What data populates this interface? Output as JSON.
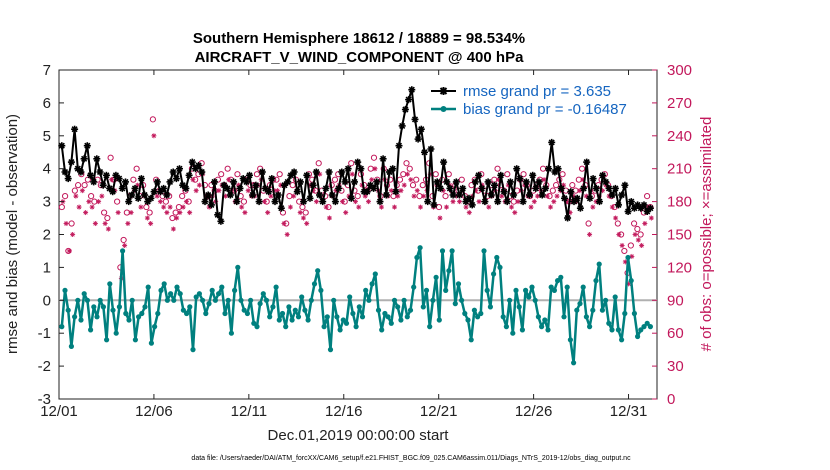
{
  "chart_data": {
    "type": "line",
    "title": "Southern Hemisphere 18612 / 18889 = 98.534%",
    "subtitle": "AIRCRAFT_V_WIND_COMPONENT @ 400 hPa",
    "xlabel": "Dec.01,2019 00:00:00 start",
    "ylabel": "rmse and bias (model - observation)",
    "y2label": "# of obs: o=possible; ×=assimilated",
    "xlim": [
      0,
      31.5
    ],
    "ylim": [
      -3,
      7
    ],
    "y2lim": [
      0,
      300
    ],
    "xticks": [
      0,
      5,
      10,
      15,
      20,
      25,
      30
    ],
    "xticklabels": [
      "12/01",
      "12/06",
      "12/11",
      "12/16",
      "12/21",
      "12/26",
      "12/31"
    ],
    "yticks": [
      -3,
      -2,
      -1,
      0,
      1,
      2,
      3,
      4,
      5,
      6,
      7
    ],
    "y2ticks": [
      0,
      30,
      60,
      90,
      120,
      150,
      180,
      210,
      240,
      270,
      300
    ],
    "legend_position": "top-right",
    "footnote": "data file: /Users/raeder/DAI/ATM_forcXX/CAM6_setup/f.e21.FHIST_BGC.f09_025.CAM6assim.011/Diags_NTrS_2019-12/obs_diag_output.nc",
    "colors": {
      "rmse": "#000000",
      "bias": "#00807f",
      "obs": "#c2185b",
      "legend_text": "#1565c0",
      "zero_line": "#b0b0b0"
    },
    "series": [
      {
        "name": "rmse grand pr = 3.635",
        "axis": "left",
        "marker": "asterisk",
        "values": [
          4.7,
          3.9,
          3.7,
          4.2,
          5.2,
          4.0,
          3.9,
          4.3,
          4.7,
          3.8,
          3.6,
          4.3,
          3.9,
          3.5,
          3.8,
          3.4,
          3.3,
          3.8,
          3.7,
          3.4,
          3.6,
          3.0,
          3.2,
          3.4,
          3.1,
          3.7,
          3.2,
          3.0,
          3.1,
          3.3,
          3.6,
          3.3,
          3.4,
          3.2,
          3.6,
          3.9,
          3.7,
          4.0,
          3.5,
          3.4,
          3.8,
          4.2,
          4.0,
          4.1,
          3.9,
          3.0,
          3.2,
          2.9,
          3.6,
          2.6,
          2.4,
          3.5,
          3.4,
          3.2,
          3.6,
          3.0,
          3.4,
          3.7,
          3.6,
          3.8,
          3.2,
          3.5,
          3.0,
          3.9,
          3.4,
          3.3,
          3.7,
          3.0,
          3.2,
          2.8,
          3.5,
          3.6,
          3.8,
          3.9,
          3.3,
          3.6,
          3.0,
          3.8,
          3.1,
          3.5,
          3.9,
          3.2,
          3.0,
          3.4,
          3.9,
          3.2,
          3.0,
          3.4,
          3.9,
          3.6,
          4.0,
          3.1,
          3.6,
          4.2,
          4.0,
          3.3,
          3.3,
          3.5,
          3.4,
          3.6,
          3.0,
          4.3,
          3.2,
          3.9,
          4.0,
          3.3,
          4.7,
          5.3,
          5.8,
          6.1,
          6.4,
          5.5,
          4.9,
          5.2,
          4.5,
          3.0,
          4.6,
          2.9,
          3.6,
          3.4,
          4.2,
          3.6,
          3.4,
          3.2,
          3.6,
          3.2,
          3.4,
          3.0,
          3.1,
          2.9,
          3.6,
          3.8,
          3.4,
          3.0,
          3.6,
          3.2,
          3.5,
          3.0,
          3.8,
          3.3,
          3.0,
          3.6,
          3.2,
          4.0,
          3.7,
          3.0,
          3.6,
          3.2,
          3.8,
          3.4,
          3.6,
          3.2,
          3.4,
          4.0,
          4.8,
          3.9,
          4.0,
          3.4,
          3.1,
          2.5,
          3.3,
          3.0,
          3.1,
          2.8,
          3.4,
          4.2,
          3.1,
          3.7,
          3.4,
          3.0,
          3.8,
          3.6,
          3.4,
          3.2,
          3.4,
          2.9,
          3.2,
          3.5,
          2.7,
          3.0,
          2.8,
          2.9,
          2.8,
          2.9,
          2.7,
          2.8
        ]
      },
      {
        "name": "bias grand pr = -0.16487",
        "axis": "left",
        "marker": "dot",
        "values": [
          -0.8,
          0.3,
          -0.3,
          -1.4,
          -0.5,
          0.0,
          -0.6,
          0.2,
          0.0,
          -0.9,
          -0.2,
          -0.5,
          0.0,
          -0.2,
          -1.2,
          0.5,
          -0.3,
          -1.0,
          -0.2,
          1.5,
          -0.4,
          -0.6,
          0.0,
          -1.2,
          -0.5,
          -0.4,
          -0.2,
          0.4,
          -1.3,
          -0.8,
          -0.4,
          0.3,
          0.5,
          0.0,
          0.2,
          0.0,
          0.4,
          0.2,
          -0.3,
          -0.4,
          -0.2,
          -1.5,
          0.1,
          0.2,
          0.0,
          -0.4,
          -0.1,
          0.3,
          0.0,
          0.2,
          0.4,
          -0.4,
          0.0,
          -1.0,
          0.3,
          1.0,
          0.0,
          -0.3,
          -0.4,
          0.0,
          -0.7,
          -0.8,
          -0.1,
          0.2,
          0.0,
          -0.5,
          -0.2,
          0.4,
          -0.6,
          -0.4,
          -0.8,
          -0.2,
          -0.6,
          -0.3,
          -0.5,
          0.1,
          -0.3,
          -0.6,
          0.0,
          0.5,
          0.9,
          0.3,
          -0.8,
          -0.5,
          -1.5,
          0.0,
          -0.5,
          -0.9,
          -0.6,
          -0.7,
          0.1,
          -0.4,
          -0.8,
          -0.2,
          -0.5,
          0.3,
          0.0,
          0.5,
          0.8,
          -0.3,
          -0.9,
          -0.4,
          -0.5,
          -0.7,
          0.0,
          -0.2,
          -0.6,
          0.0,
          -0.5,
          -0.3,
          0.4,
          1.3,
          1.6,
          -0.2,
          0.3,
          -0.8,
          0.0,
          0.7,
          -0.6,
          1.5,
          0.3,
          0.9,
          1.5,
          -0.1,
          0.5,
          0.0,
          -0.4,
          -0.6,
          -1.2,
          -0.3,
          -0.5,
          -0.4,
          1.5,
          0.3,
          -0.2,
          0.8,
          1.3,
          1.0,
          -0.5,
          -0.8,
          0.0,
          -1.0,
          0.3,
          -0.2,
          -0.9,
          0.3,
          0.1,
          0.4,
          0.0,
          -0.5,
          -0.8,
          -0.6,
          -0.9,
          0.4,
          0.3,
          0.6,
          0.7,
          -0.5,
          0.4,
          -1.2,
          -1.9,
          -0.3,
          -0.1,
          0.4,
          -0.5,
          -0.8,
          -0.3,
          0.6,
          1.1,
          -0.3,
          0.0,
          -0.7,
          -0.9,
          0.1,
          -0.9,
          -1.2,
          -0.4,
          1.3,
          0.6,
          -0.4,
          -1.1,
          -0.9,
          -0.8,
          -0.7,
          -0.8
        ]
      }
    ],
    "obs_possible": [
      175,
      185,
      135,
      160,
      190,
      195,
      205,
      195,
      200,
      185,
      180,
      200,
      195,
      170,
      165,
      220,
      200,
      180,
      120,
      145,
      170,
      185,
      200,
      210,
      185,
      195,
      175,
      170,
      255,
      200,
      190,
      185,
      180,
      185,
      165,
      170,
      175,
      185,
      190,
      180,
      210,
      200,
      205,
      215,
      195,
      185,
      195,
      190,
      200,
      205,
      195,
      210,
      200,
      190,
      205,
      185,
      180,
      200,
      195,
      195,
      205,
      210,
      190,
      180,
      195,
      200,
      200,
      205,
      170,
      160,
      185,
      195,
      200,
      180,
      175,
      170,
      205,
      200,
      190,
      215,
      190,
      185,
      175,
      195,
      200,
      205,
      190,
      180,
      195,
      215,
      190,
      185,
      205,
      195,
      190,
      210,
      220,
      200,
      185,
      210,
      195,
      200,
      185,
      195,
      200,
      205,
      215,
      210,
      195,
      200,
      185,
      195,
      200,
      215,
      185,
      205,
      175,
      200,
      185,
      205,
      190,
      195,
      190,
      200,
      185,
      180,
      195,
      200,
      190,
      205,
      190,
      185,
      195,
      200,
      210,
      195,
      190,
      205,
      185,
      180,
      190,
      200,
      205,
      195,
      185,
      190,
      195,
      200,
      210,
      195,
      185,
      190,
      195,
      200,
      205,
      190,
      180,
      195,
      190,
      200,
      210,
      195,
      160,
      185,
      190,
      195,
      200,
      205,
      195,
      185,
      175,
      160,
      150,
      135,
      115,
      140,
      160,
      155,
      150,
      170,
      185,
      175
    ],
    "obs_assimilated": [
      180,
      160,
      135,
      150,
      185,
      175,
      190,
      170,
      180,
      175,
      160,
      180,
      185,
      160,
      155,
      200,
      190,
      170,
      110,
      140,
      160,
      170,
      190,
      195,
      175,
      185,
      165,
      160,
      240,
      185,
      180,
      175,
      170,
      175,
      155,
      165,
      170,
      175,
      180,
      170,
      200,
      190,
      195,
      205,
      185,
      175,
      185,
      180,
      190,
      195,
      185,
      200,
      190,
      180,
      195,
      175,
      170,
      190,
      185,
      185,
      195,
      200,
      180,
      170,
      185,
      190,
      190,
      195,
      160,
      150,
      175,
      185,
      190,
      170,
      165,
      160,
      195,
      190,
      180,
      205,
      180,
      175,
      165,
      185,
      190,
      195,
      180,
      170,
      185,
      205,
      180,
      175,
      195,
      185,
      180,
      200,
      210,
      190,
      175,
      200,
      185,
      190,
      175,
      185,
      190,
      195,
      205,
      200,
      185,
      190,
      175,
      185,
      190,
      205,
      175,
      195,
      165,
      190,
      175,
      195,
      180,
      185,
      180,
      190,
      175,
      170,
      185,
      190,
      180,
      195,
      180,
      175,
      185,
      190,
      200,
      185,
      180,
      195,
      175,
      170,
      180,
      190,
      195,
      185,
      175,
      180,
      185,
      190,
      200,
      185,
      175,
      180,
      185,
      190,
      195,
      180,
      170,
      185,
      180,
      190,
      200,
      185,
      150,
      175,
      180,
      185,
      190,
      195,
      185,
      175,
      165,
      150,
      140,
      125,
      105,
      130,
      150,
      145,
      140,
      160,
      175,
      165
    ]
  }
}
